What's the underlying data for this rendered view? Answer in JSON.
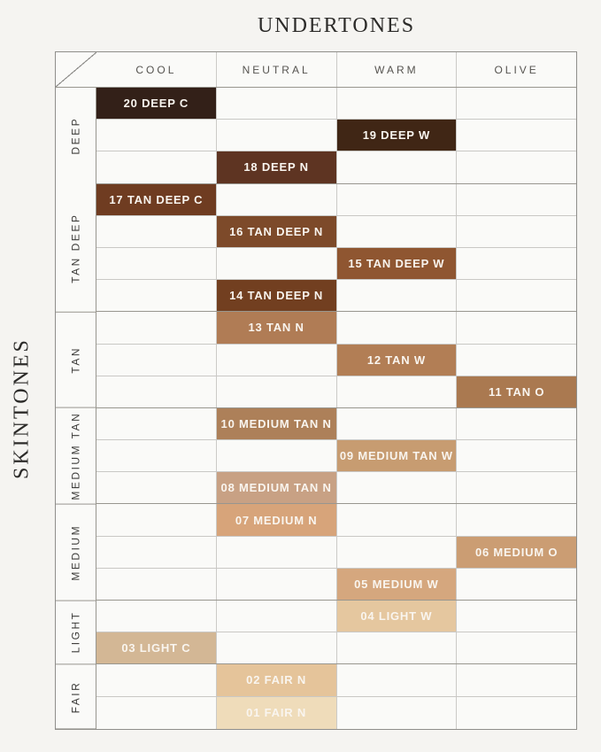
{
  "chart_data": {
    "type": "table",
    "title": "UNDERTONES",
    "side_title": "SKINTONES",
    "columns": [
      "COOL",
      "NEUTRAL",
      "WARM",
      "OLIVE"
    ],
    "row_groups": [
      {
        "label": "DEEP",
        "rows": 3
      },
      {
        "label": "TAN DEEP",
        "rows": 4
      },
      {
        "label": "TAN",
        "rows": 3
      },
      {
        "label": "MEDIUM TAN",
        "rows": 3
      },
      {
        "label": "MEDIUM",
        "rows": 3
      },
      {
        "label": "LIGHT",
        "rows": 2
      },
      {
        "label": "FAIR",
        "rows": 2
      }
    ],
    "shades": [
      {
        "row": 1,
        "label": "20 DEEP C",
        "undertone": "COOL",
        "skintone": "DEEP",
        "color": "#332018"
      },
      {
        "row": 2,
        "label": "19 DEEP W",
        "undertone": "WARM",
        "skintone": "DEEP",
        "color": "#402615"
      },
      {
        "row": 3,
        "label": "18 DEEP N",
        "undertone": "NEUTRAL",
        "skintone": "DEEP",
        "color": "#5e3422"
      },
      {
        "row": 4,
        "label": "17 TAN DEEP C",
        "undertone": "COOL",
        "skintone": "TAN DEEP",
        "color": "#6f3c21"
      },
      {
        "row": 5,
        "label": "16 TAN DEEP N",
        "undertone": "NEUTRAL",
        "skintone": "TAN DEEP",
        "color": "#7d4a2a"
      },
      {
        "row": 6,
        "label": "15 TAN DEEP W",
        "undertone": "WARM",
        "skintone": "TAN DEEP",
        "color": "#8f5631"
      },
      {
        "row": 7,
        "label": "14 TAN DEEP N",
        "undertone": "NEUTRAL",
        "skintone": "TAN DEEP",
        "color": "#723f20"
      },
      {
        "row": 8,
        "label": "13 TAN N",
        "undertone": "NEUTRAL",
        "skintone": "TAN",
        "color": "#b07c55"
      },
      {
        "row": 9,
        "label": "12 TAN W",
        "undertone": "WARM",
        "skintone": "TAN",
        "color": "#b27e55"
      },
      {
        "row": 10,
        "label": "11 TAN O",
        "undertone": "OLIVE",
        "skintone": "TAN",
        "color": "#aa7950"
      },
      {
        "row": 11,
        "label": "10 MEDIUM TAN N",
        "undertone": "NEUTRAL",
        "skintone": "MEDIUM TAN",
        "color": "#ad8059"
      },
      {
        "row": 12,
        "label": "09 MEDIUM TAN W",
        "undertone": "WARM",
        "skintone": "MEDIUM TAN",
        "color": "#c79c71"
      },
      {
        "row": 13,
        "label": "08 MEDIUM TAN N",
        "undertone": "NEUTRAL",
        "skintone": "MEDIUM TAN",
        "color": "#c8a184"
      },
      {
        "row": 14,
        "label": "07 MEDIUM N",
        "undertone": "NEUTRAL",
        "skintone": "MEDIUM",
        "color": "#d7a47a"
      },
      {
        "row": 15,
        "label": "06 MEDIUM O",
        "undertone": "OLIVE",
        "skintone": "MEDIUM",
        "color": "#cb9d73"
      },
      {
        "row": 16,
        "label": "05 MEDIUM W",
        "undertone": "WARM",
        "skintone": "MEDIUM",
        "color": "#d5a77e"
      },
      {
        "row": 17,
        "label": "04 LIGHT W",
        "undertone": "WARM",
        "skintone": "LIGHT",
        "color": "#e5c79f"
      },
      {
        "row": 18,
        "label": "03 LIGHT C",
        "undertone": "COOL",
        "skintone": "LIGHT",
        "color": "#d3b795"
      },
      {
        "row": 19,
        "label": "02 FAIR N",
        "undertone": "NEUTRAL",
        "skintone": "FAIR",
        "color": "#e5c49a"
      },
      {
        "row": 20,
        "label": "01 FAIR N",
        "undertone": "NEUTRAL",
        "skintone": "FAIR",
        "color": "#efdcba"
      }
    ],
    "colors": {
      "background": "#f5f4f1",
      "cell_background": "#fafaf8",
      "grid_line": "#c9c8c5",
      "group_line": "#98968f",
      "outer_border": "#8f8e8b",
      "header_text": "#55534f",
      "title_text": "#2c2b29",
      "swatch_text": "#f9f5ef"
    },
    "layout_hints": {
      "grid": "on",
      "rows": 20,
      "cols": 4
    }
  }
}
